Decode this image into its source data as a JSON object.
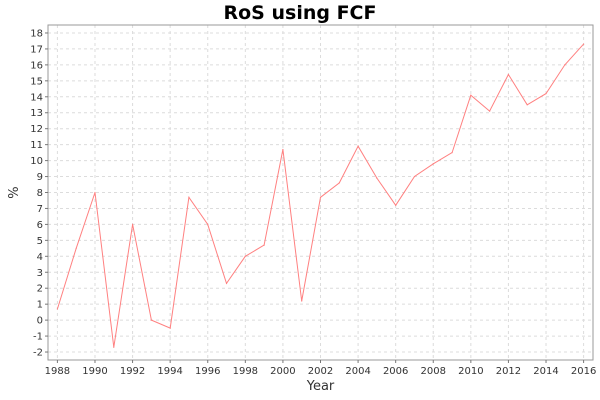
{
  "chart_data": {
    "type": "line",
    "title": "RoS using FCF",
    "xlabel": "Year",
    "ylabel": "%",
    "xlim": [
      1987.5,
      2016.5
    ],
    "ylim": [
      -2.5,
      18.5
    ],
    "x_ticks": [
      1988,
      1990,
      1992,
      1994,
      1996,
      1998,
      2000,
      2002,
      2004,
      2006,
      2008,
      2010,
      2012,
      2014,
      2016
    ],
    "y_ticks": [
      -2,
      -1,
      0,
      1,
      2,
      3,
      4,
      5,
      6,
      7,
      8,
      9,
      10,
      11,
      12,
      13,
      14,
      15,
      16,
      17,
      18
    ],
    "grid": true,
    "series": [
      {
        "color": "#ff8080",
        "x": [
          1988,
          1989,
          1990,
          1991,
          1992,
          1993,
          1994,
          1995,
          1996,
          1997,
          1998,
          1999,
          2000,
          2001,
          2002,
          2003,
          2004,
          2005,
          2006,
          2007,
          2008,
          2009,
          2010,
          2011,
          2012,
          2013,
          2014,
          2015,
          2016
        ],
        "y": [
          0.7,
          4.5,
          8.0,
          -1.7,
          6.0,
          0.0,
          -0.5,
          7.7,
          6.0,
          2.3,
          4.0,
          4.7,
          10.7,
          1.2,
          7.7,
          8.6,
          10.9,
          8.9,
          7.2,
          9.0,
          9.8,
          10.5,
          14.1,
          13.1,
          15.4,
          13.5,
          14.2,
          16.0,
          17.3
        ]
      }
    ]
  }
}
